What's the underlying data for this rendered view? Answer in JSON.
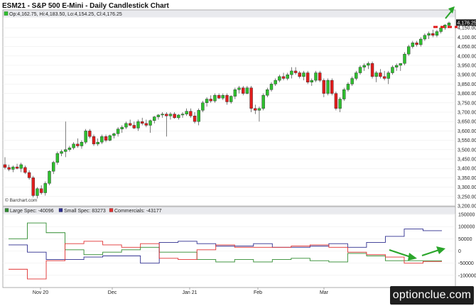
{
  "title": "ESM21 - S&P 500 E-Mini - Daily Candlestick Chart",
  "ohlc_text": "Op:4,162.75, Hi:4,183.50, Lo:4,154.25, Cl:4,176.25",
  "last_price_label": "4,176.25",
  "watermark": "© Barchart.com",
  "site_badge": "optionclue.com",
  "colors": {
    "up": "#2fbf2f",
    "down": "#e21d1d",
    "large_spec": "#2e8b2e",
    "small_spec": "#2e2e8f",
    "commercials": "#e03030",
    "arrow": "#2aa52a",
    "dash": "#e0191a"
  },
  "chart_data": [
    {
      "type": "candlestick",
      "title": "ESM21 - S&P 500 E-Mini - Daily Candlestick Chart",
      "ylim": [
        3200,
        4200
      ],
      "yticks": [
        3200,
        3250,
        3300,
        3350,
        3400,
        3450,
        3500,
        3550,
        3600,
        3650,
        3700,
        3750,
        3800,
        3850,
        3900,
        3950,
        4000,
        4050,
        4100,
        4150
      ],
      "ytick_labels": [
        "3,200.00",
        "3,250.00",
        "3,300.00",
        "3,350.00",
        "3,400.00",
        "3,450.00",
        "3,500.00",
        "3,550.00",
        "3,600.00",
        "3,650.00",
        "3,700.00",
        "3,750.00",
        "3,800.00",
        "3,850.00",
        "3,900.00",
        "3,950.00",
        "4,000.00",
        "4,050.00",
        "4,100.00",
        "4,150.00"
      ],
      "x_labels": [
        "Nov 20",
        "Dec",
        "Jan 21",
        "Feb",
        "Mar"
      ],
      "last": 4176.25,
      "candles": [
        [
          3420,
          3460,
          3395,
          3405
        ],
        [
          3405,
          3420,
          3385,
          3395
        ],
        [
          3395,
          3415,
          3380,
          3408
        ],
        [
          3408,
          3425,
          3395,
          3400
        ],
        [
          3400,
          3430,
          3380,
          3420
        ],
        [
          3405,
          3415,
          3370,
          3378
        ],
        [
          3378,
          3390,
          3340,
          3350
        ],
        [
          3350,
          3360,
          3245,
          3255
        ],
        [
          3255,
          3300,
          3240,
          3292
        ],
        [
          3292,
          3310,
          3260,
          3270
        ],
        [
          3270,
          3330,
          3255,
          3320
        ],
        [
          3320,
          3390,
          3310,
          3385
        ],
        [
          3385,
          3440,
          3370,
          3432
        ],
        [
          3432,
          3490,
          3420,
          3480
        ],
        [
          3480,
          3500,
          3465,
          3490
        ],
        [
          3490,
          3650,
          3460,
          3500
        ],
        [
          3500,
          3520,
          3490,
          3510
        ],
        [
          3510,
          3540,
          3500,
          3530
        ],
        [
          3530,
          3560,
          3510,
          3520
        ],
        [
          3520,
          3550,
          3505,
          3540
        ],
        [
          3540,
          3610,
          3530,
          3600
        ],
        [
          3600,
          3610,
          3560,
          3570
        ],
        [
          3570,
          3580,
          3520,
          3530
        ],
        [
          3530,
          3560,
          3520,
          3540
        ],
        [
          3540,
          3580,
          3530,
          3570
        ],
        [
          3570,
          3580,
          3540,
          3550
        ],
        [
          3550,
          3580,
          3545,
          3575
        ],
        [
          3575,
          3590,
          3560,
          3585
        ],
        [
          3585,
          3620,
          3570,
          3610
        ],
        [
          3610,
          3630,
          3590,
          3620
        ],
        [
          3620,
          3650,
          3610,
          3640
        ],
        [
          3640,
          3660,
          3625,
          3630
        ],
        [
          3630,
          3650,
          3610,
          3615
        ],
        [
          3615,
          3660,
          3600,
          3650
        ],
        [
          3650,
          3670,
          3630,
          3640
        ],
        [
          3640,
          3660,
          3620,
          3630
        ],
        [
          3630,
          3660,
          3590,
          3655
        ],
        [
          3655,
          3680,
          3640,
          3675
        ],
        [
          3675,
          3690,
          3660,
          3685
        ],
        [
          3685,
          3700,
          3670,
          3690
        ],
        [
          3690,
          3700,
          3570,
          3680
        ],
        [
          3680,
          3700,
          3660,
          3690
        ],
        [
          3690,
          3700,
          3665,
          3670
        ],
        [
          3670,
          3690,
          3660,
          3685
        ],
        [
          3685,
          3700,
          3670,
          3690
        ],
        [
          3690,
          3720,
          3680,
          3705
        ],
        [
          3705,
          3720,
          3670,
          3680
        ],
        [
          3680,
          3700,
          3640,
          3650
        ],
        [
          3650,
          3720,
          3630,
          3710
        ],
        [
          3710,
          3760,
          3700,
          3750
        ],
        [
          3750,
          3780,
          3730,
          3770
        ],
        [
          3770,
          3790,
          3750,
          3760
        ],
        [
          3760,
          3800,
          3750,
          3790
        ],
        [
          3790,
          3800,
          3770,
          3775
        ],
        [
          3775,
          3800,
          3765,
          3790
        ],
        [
          3790,
          3800,
          3740,
          3755
        ],
        [
          3755,
          3790,
          3745,
          3785
        ],
        [
          3785,
          3830,
          3770,
          3820
        ],
        [
          3820,
          3840,
          3800,
          3830
        ],
        [
          3830,
          3840,
          3790,
          3800
        ],
        [
          3800,
          3840,
          3795,
          3830
        ],
        [
          3830,
          3840,
          3700,
          3720
        ],
        [
          3720,
          3740,
          3690,
          3710
        ],
        [
          3710,
          3730,
          3650,
          3720
        ],
        [
          3720,
          3800,
          3710,
          3790
        ],
        [
          3790,
          3830,
          3780,
          3820
        ],
        [
          3820,
          3860,
          3810,
          3850
        ],
        [
          3850,
          3880,
          3840,
          3870
        ],
        [
          3870,
          3900,
          3860,
          3890
        ],
        [
          3890,
          3910,
          3870,
          3880
        ],
        [
          3880,
          3910,
          3870,
          3900
        ],
        [
          3900,
          3940,
          3880,
          3920
        ],
        [
          3920,
          3940,
          3900,
          3910
        ],
        [
          3910,
          3920,
          3880,
          3890
        ],
        [
          3890,
          3920,
          3870,
          3910
        ],
        [
          3910,
          3920,
          3850,
          3860
        ],
        [
          3860,
          3880,
          3840,
          3870
        ],
        [
          3870,
          3920,
          3860,
          3910
        ],
        [
          3910,
          3920,
          3860,
          3870
        ],
        [
          3870,
          3880,
          3780,
          3800
        ],
        [
          3800,
          3880,
          3790,
          3870
        ],
        [
          3870,
          3880,
          3790,
          3800
        ],
        [
          3800,
          3810,
          3710,
          3720
        ],
        [
          3720,
          3780,
          3700,
          3770
        ],
        [
          3770,
          3830,
          3760,
          3820
        ],
        [
          3820,
          3860,
          3810,
          3850
        ],
        [
          3850,
          3890,
          3840,
          3880
        ],
        [
          3880,
          3920,
          3870,
          3910
        ],
        [
          3910,
          3950,
          3900,
          3940
        ],
        [
          3940,
          3960,
          3920,
          3950
        ],
        [
          3950,
          3970,
          3930,
          3960
        ],
        [
          3960,
          3970,
          3880,
          3890
        ],
        [
          3890,
          3920,
          3860,
          3910
        ],
        [
          3910,
          3930,
          3880,
          3890
        ],
        [
          3890,
          3920,
          3870,
          3880
        ],
        [
          3880,
          3920,
          3850,
          3910
        ],
        [
          3910,
          3950,
          3900,
          3940
        ],
        [
          3940,
          3960,
          3920,
          3950
        ],
        [
          3950,
          3960,
          3920,
          3960
        ],
        [
          3960,
          4020,
          3950,
          4010
        ],
        [
          4010,
          4060,
          4000,
          4050
        ],
        [
          4050,
          4080,
          4040,
          4070
        ],
        [
          4070,
          4080,
          4050,
          4060
        ],
        [
          4060,
          4100,
          4050,
          4090
        ],
        [
          4090,
          4120,
          4080,
          4110
        ],
        [
          4110,
          4130,
          4090,
          4120
        ],
        [
          4120,
          4140,
          4100,
          4110
        ],
        [
          4110,
          4140,
          4100,
          4130
        ],
        [
          4130,
          4160,
          4120,
          4150
        ],
        [
          4150,
          4170,
          4140,
          4165
        ],
        [
          4162.75,
          4183.5,
          4154.25,
          4176.25
        ]
      ]
    },
    {
      "type": "line",
      "title": "",
      "ylim": [
        -150000,
        150000
      ],
      "yticks": [
        -100000,
        -50000,
        0,
        50000,
        100000,
        150000
      ],
      "ytick_labels": [
        "-100000",
        "-50000",
        "0",
        "50000",
        "100000",
        "150000"
      ],
      "legend": [
        {
          "label": "Large Spec: -40096"
        },
        {
          "label": "Small Spec: 83273"
        },
        {
          "label": "Commercials: -43177"
        }
      ],
      "x_labels": [
        "Nov 20",
        "Dec",
        "Jan 21",
        "Feb",
        "Mar"
      ],
      "weeks": 23,
      "series": [
        {
          "values": [
            50000,
            115000,
            75000,
            5000,
            -15000,
            -5000,
            5000,
            15000,
            -5000,
            -5000,
            -35000,
            -45000,
            -35000,
            -45000,
            -35000,
            -30000,
            -40000,
            -45000,
            -10000,
            -20000,
            -40000,
            -40000,
            -40096
          ]
        },
        {
          "values": [
            25000,
            -5000,
            -35000,
            -35000,
            -25000,
            -20000,
            -20000,
            -50000,
            35000,
            40000,
            30000,
            20000,
            20000,
            30000,
            15000,
            15000,
            20000,
            30000,
            15000,
            35000,
            60000,
            90000,
            83273
          ]
        },
        {
          "values": [
            -75000,
            -115000,
            -40000,
            30000,
            40000,
            25000,
            15000,
            30000,
            -30000,
            -35000,
            5000,
            25000,
            15000,
            15000,
            15000,
            20000,
            25000,
            15000,
            -5000,
            -15000,
            -25000,
            -50000,
            -43177
          ]
        }
      ]
    }
  ]
}
